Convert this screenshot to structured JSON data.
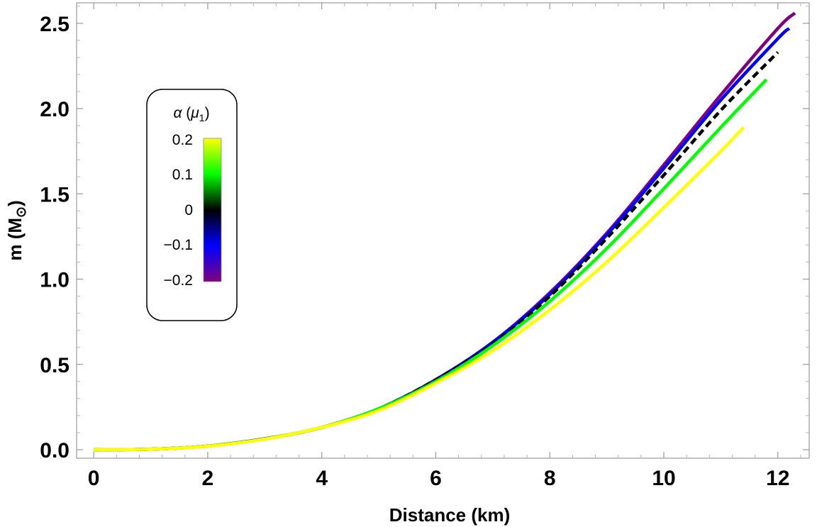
{
  "chart_data": {
    "type": "line",
    "title": "",
    "xlabel": "Distance (km)",
    "ylabel_main": "m (M",
    "ylabel_symbol": "⊙",
    "ylabel_close": ")",
    "xlim": [
      -0.3,
      12.55
    ],
    "ylim": [
      -0.05,
      2.62
    ],
    "xticks": [
      0,
      2,
      4,
      6,
      8,
      10,
      12
    ],
    "xtick_labels": [
      "0",
      "2",
      "4",
      "6",
      "8",
      "10",
      "12"
    ],
    "yticks": [
      0.0,
      0.5,
      1.0,
      1.5,
      2.0,
      2.5
    ],
    "ytick_labels": [
      "0.0",
      "0.5",
      "1.0",
      "1.5",
      "2.0",
      "2.5"
    ],
    "grid": false,
    "legend": {
      "placement": "upper-left",
      "title_alpha": "α",
      "title_mu": "μ",
      "title_sub": "1",
      "colorbar_labels": [
        "0.2",
        "0.1",
        "0",
        "−0.1",
        "−0.2"
      ],
      "colorbar_values": [
        0.2,
        0.1,
        0,
        -0.1,
        -0.2
      ],
      "colorbar_colors": [
        "#FFFF00",
        "#00FF00",
        "#000000",
        "#0000FF",
        "#800080"
      ]
    },
    "series": [
      {
        "alpha": -0.2,
        "color": "#800080",
        "dashed": false,
        "x": [
          0,
          1,
          2,
          3,
          4,
          5,
          6,
          7,
          8,
          9,
          10,
          11,
          12,
          12.3
        ],
        "y": [
          0.0,
          0.003,
          0.021,
          0.064,
          0.13,
          0.24,
          0.41,
          0.63,
          0.92,
          1.27,
          1.67,
          2.08,
          2.47,
          2.56
        ]
      },
      {
        "alpha": -0.1,
        "color": "#0000FF",
        "dashed": false,
        "x": [
          0,
          1,
          2,
          3,
          4,
          5,
          6,
          7,
          8,
          9,
          10,
          11,
          12,
          12.2
        ],
        "y": [
          0.0,
          0.003,
          0.021,
          0.064,
          0.13,
          0.24,
          0.41,
          0.63,
          0.91,
          1.26,
          1.65,
          2.05,
          2.41,
          2.47
        ]
      },
      {
        "alpha": 0,
        "color": "#000000",
        "dashed": true,
        "x": [
          0,
          1,
          2,
          3,
          4,
          5,
          6,
          7,
          8,
          9,
          10,
          11,
          12
        ],
        "y": [
          0.0,
          0.003,
          0.021,
          0.063,
          0.13,
          0.24,
          0.41,
          0.62,
          0.9,
          1.24,
          1.61,
          1.99,
          2.33
        ]
      },
      {
        "alpha": 0.1,
        "color": "#00FF00",
        "dashed": false,
        "x": [
          0,
          1,
          2,
          3,
          4,
          5,
          6,
          7,
          8,
          9,
          10,
          11,
          11.8
        ],
        "y": [
          0.0,
          0.003,
          0.021,
          0.063,
          0.13,
          0.24,
          0.4,
          0.61,
          0.87,
          1.18,
          1.53,
          1.89,
          2.17
        ]
      },
      {
        "alpha": 0.2,
        "color": "#FFFF00",
        "dashed": false,
        "x": [
          0,
          1,
          2,
          3,
          4,
          5,
          6,
          7,
          8,
          9,
          10,
          11,
          11.4
        ],
        "y": [
          0.0,
          0.003,
          0.02,
          0.062,
          0.13,
          0.23,
          0.39,
          0.58,
          0.82,
          1.1,
          1.42,
          1.75,
          1.89
        ]
      }
    ]
  }
}
